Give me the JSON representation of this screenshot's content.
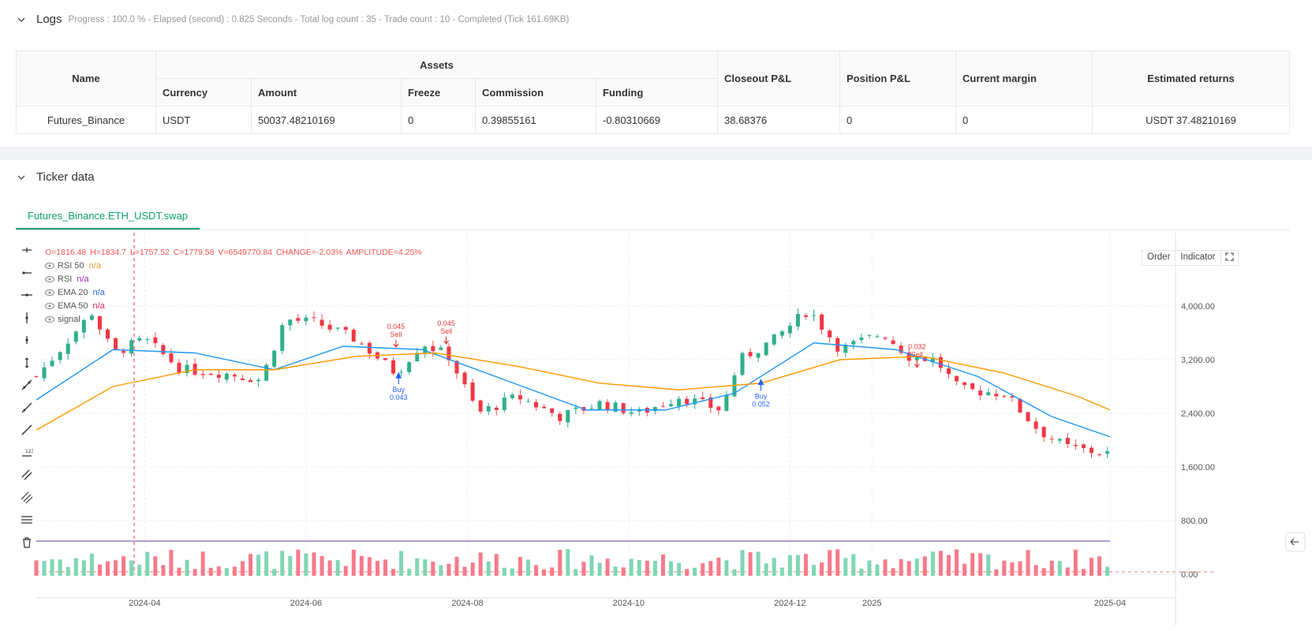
{
  "logs": {
    "title": "Logs",
    "status": "Progress : 100.0 % - Elapsed (second) : 0.825  Seconds - Total log count : 35 - Trade count : 10 - Completed (Tick 161.69KB)"
  },
  "assets_table": {
    "headers": {
      "name": "Name",
      "assets": "Assets",
      "currency": "Currency",
      "amount": "Amount",
      "freeze": "Freeze",
      "commission": "Commission",
      "funding": "Funding",
      "closeout_pnl": "Closeout P&L",
      "position_pnl": "Position P&L",
      "current_margin": "Current margin",
      "estimated_returns": "Estimated returns"
    },
    "rows": [
      {
        "name": "Futures_Binance",
        "currency": "USDT",
        "amount": "50037.48210169",
        "freeze": "0",
        "commission": "0.39855161",
        "funding": "-0.80310669",
        "closeout_pnl": "38.68376",
        "position_pnl": "0",
        "current_margin": "0",
        "estimated_returns": "USDT 37.48210169"
      }
    ]
  },
  "ticker": {
    "title": "Ticker data",
    "tab_label": "Futures_Binance.ETH_USDT.swap",
    "buttons": {
      "order": "Order",
      "indicator": "Indicator"
    },
    "ohlc": {
      "o": "O=1816.48",
      "h": "H=1834.7",
      "l": "L=1757.52",
      "c": "C=1779.58",
      "v": "V=6549770.84",
      "change": "CHANGE=-2.03%",
      "amplitude": "AMPLITUDE=4.25%"
    },
    "legend": [
      {
        "name": "RSI 50",
        "value": "n/a",
        "color": "#f29d38"
      },
      {
        "name": "RSI",
        "value": "n/a",
        "color": "#9c27b0"
      },
      {
        "name": "EMA 20",
        "value": "n/a",
        "color": "#2962ff"
      },
      {
        "name": "EMA 50",
        "value": "n/a",
        "color": "#e91e63"
      },
      {
        "name": "signal",
        "value": "",
        "color": "#888888"
      }
    ],
    "toolbar_icons": [
      "crosshair-icon",
      "horizontal-ray-icon",
      "horizontal-line-icon",
      "vertical-line-icon",
      "vertical-segment-icon",
      "vertical-ray-icon",
      "trend-line-icon",
      "ray-line-icon",
      "extended-line-icon",
      "price-label-icon",
      "parallel-channel-icon",
      "fib-channel-icon",
      "fib-retracement-icon",
      "trash-icon"
    ]
  },
  "chart_data": {
    "type": "candlestick",
    "x_tick_labels": [
      "2024-04",
      "2024-06",
      "2024-08",
      "2024-10",
      "2024-12",
      "2025",
      "2025-04"
    ],
    "y_tick_labels": [
      "4,000.00",
      "3,200.00",
      "2,400.00",
      "1,600.00",
      "800.00",
      "0.00"
    ],
    "ylim": [
      0,
      4400
    ],
    "close_series": [
      {
        "date": "2024-02-20",
        "close": 2950
      },
      {
        "date": "2024-03-01",
        "close": 3400
      },
      {
        "date": "2024-03-12",
        "close": 3900
      },
      {
        "date": "2024-03-20",
        "close": 3300
      },
      {
        "date": "2024-04-01",
        "close": 3500
      },
      {
        "date": "2024-04-15",
        "close": 3050
      },
      {
        "date": "2024-05-01",
        "close": 3000
      },
      {
        "date": "2024-05-15",
        "close": 2900
      },
      {
        "date": "2024-05-24",
        "close": 3800
      },
      {
        "date": "2024-06-05",
        "close": 3750
      },
      {
        "date": "2024-06-20",
        "close": 3500
      },
      {
        "date": "2024-07-05",
        "close": 3000
      },
      {
        "date": "2024-07-15",
        "close": 3450
      },
      {
        "date": "2024-07-25",
        "close": 3250
      },
      {
        "date": "2024-08-05",
        "close": 2400
      },
      {
        "date": "2024-08-20",
        "close": 2650
      },
      {
        "date": "2024-09-05",
        "close": 2350
      },
      {
        "date": "2024-09-20",
        "close": 2550
      },
      {
        "date": "2024-10-05",
        "close": 2400
      },
      {
        "date": "2024-10-20",
        "close": 2650
      },
      {
        "date": "2024-11-05",
        "close": 2450
      },
      {
        "date": "2024-11-12",
        "close": 3200
      },
      {
        "date": "2024-11-25",
        "close": 3500
      },
      {
        "date": "2024-12-08",
        "close": 3950
      },
      {
        "date": "2024-12-20",
        "close": 3350
      },
      {
        "date": "2025-01-05",
        "close": 3600
      },
      {
        "date": "2025-01-15",
        "close": 3250
      },
      {
        "date": "2025-01-25",
        "close": 3200
      },
      {
        "date": "2025-02-03",
        "close": 2750
      },
      {
        "date": "2025-02-20",
        "close": 2700
      },
      {
        "date": "2025-03-05",
        "close": 2150
      },
      {
        "date": "2025-03-15",
        "close": 1900
      },
      {
        "date": "2025-03-30",
        "close": 1800
      }
    ],
    "ema20": [
      {
        "date": "2024-02-20",
        "value": 2600
      },
      {
        "date": "2024-03-20",
        "value": 3350
      },
      {
        "date": "2024-04-20",
        "value": 3300
      },
      {
        "date": "2024-05-20",
        "value": 3050
      },
      {
        "date": "2024-06-15",
        "value": 3400
      },
      {
        "date": "2024-07-15",
        "value": 3350
      },
      {
        "date": "2024-08-15",
        "value": 2900
      },
      {
        "date": "2024-09-15",
        "value": 2450
      },
      {
        "date": "2024-10-15",
        "value": 2450
      },
      {
        "date": "2024-11-10",
        "value": 2700
      },
      {
        "date": "2024-12-10",
        "value": 3450
      },
      {
        "date": "2025-01-10",
        "value": 3350
      },
      {
        "date": "2025-02-10",
        "value": 2950
      },
      {
        "date": "2025-03-10",
        "value": 2350
      },
      {
        "date": "2025-04-01",
        "value": 2050
      }
    ],
    "ema50": [
      {
        "date": "2024-02-20",
        "value": 2150
      },
      {
        "date": "2024-03-20",
        "value": 2800
      },
      {
        "date": "2024-04-20",
        "value": 3050
      },
      {
        "date": "2024-05-20",
        "value": 3050
      },
      {
        "date": "2024-06-20",
        "value": 3250
      },
      {
        "date": "2024-07-20",
        "value": 3300
      },
      {
        "date": "2024-08-20",
        "value": 3100
      },
      {
        "date": "2024-09-20",
        "value": 2850
      },
      {
        "date": "2024-10-20",
        "value": 2750
      },
      {
        "date": "2024-11-20",
        "value": 2850
      },
      {
        "date": "2024-12-20",
        "value": 3200
      },
      {
        "date": "2025-01-20",
        "value": 3250
      },
      {
        "date": "2025-02-20",
        "value": 3000
      },
      {
        "date": "2025-03-20",
        "value": 2650
      },
      {
        "date": "2025-04-01",
        "value": 2450
      }
    ],
    "signals": [
      {
        "type": "Buy",
        "label": "Buy",
        "size": "0.043",
        "date": "2024-07-06",
        "price": 3000
      },
      {
        "type": "Sell",
        "label": "Sell",
        "size": "0.045",
        "date": "2024-07-05",
        "price": 3400
      },
      {
        "type": "Sell",
        "label": "Sell",
        "size": "0.045",
        "date": "2024-07-24",
        "price": 3450
      },
      {
        "type": "Buy",
        "label": "Buy",
        "size": "0.052",
        "date": "2024-11-20",
        "price": 2900
      },
      {
        "type": "Sell",
        "label": "Sell",
        "size": "0.032",
        "date": "2025-01-18",
        "price": 3100
      }
    ]
  }
}
